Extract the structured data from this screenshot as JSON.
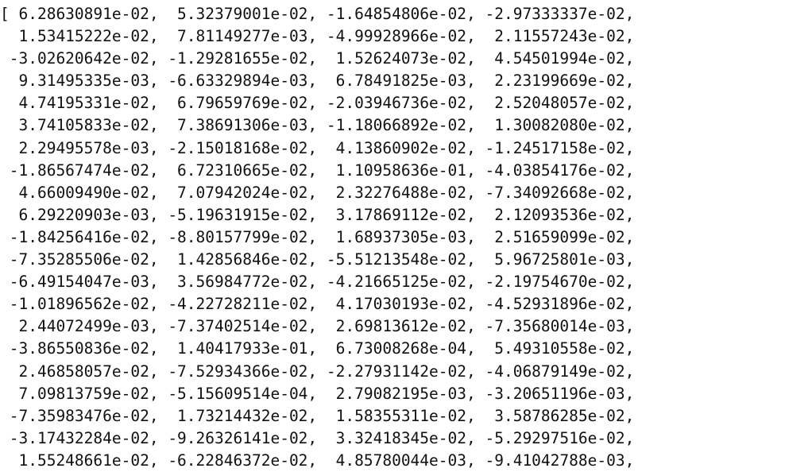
{
  "terminal": {
    "lines": [
      "[ 6.28630891e-02,  5.32379001e-02, -1.64854806e-02, -2.97333337e-02,",
      "  1.53415222e-02,  7.81149277e-03, -4.99928966e-02,  2.11557243e-02,",
      " -3.02620642e-02, -1.29281655e-02,  1.52624073e-02,  4.54501994e-02,",
      "  9.31495335e-03, -6.63329894e-03,  6.78491825e-03,  2.23199669e-02,",
      "  4.74195331e-02,  6.79659769e-02, -2.03946736e-02,  2.52048057e-02,",
      "  3.74105833e-02,  7.38691306e-03, -1.18066892e-02,  1.30082080e-02,",
      "  2.29495578e-03, -2.15018168e-02,  4.13860902e-02, -1.24517158e-02,",
      " -1.86567474e-02,  6.72310665e-02,  1.10958636e-01, -4.03854176e-02,",
      "  4.66009490e-02,  7.07942024e-02,  2.32276488e-02, -7.34092668e-02,",
      "  6.29220903e-03, -5.19631915e-02,  3.17869112e-02,  2.12093536e-02,",
      " -1.84256416e-02, -8.80157799e-02,  1.68937305e-03,  2.51659099e-02,",
      " -7.35285506e-02,  1.42856846e-02, -5.51213548e-02,  5.96725801e-03,",
      " -6.49154047e-03,  3.56984772e-02, -4.21665125e-02, -2.19754670e-02,",
      " -1.01896562e-02, -4.22728211e-02,  4.17030193e-02, -4.52931896e-02,",
      "  2.44072499e-03, -7.37402514e-02,  2.69813612e-02, -7.35680014e-03,",
      " -3.86550836e-02,  1.40417933e-01,  6.73008268e-04,  5.49310558e-02,",
      "  2.46858057e-02, -7.52934366e-02, -2.27931142e-02, -4.06879149e-02,",
      "  7.09813759e-02, -5.15609514e-04,  2.79082195e-03, -3.20651196e-03,",
      " -7.35983476e-02,  1.73214432e-02,  1.58355311e-02,  3.58786285e-02,",
      " -3.17432284e-02, -9.26326141e-02,  3.32418345e-02, -5.29297516e-02,",
      "  1.55248661e-02, -6.22846372e-02,  4.85780044e-03, -9.41042788e-03,"
    ]
  }
}
